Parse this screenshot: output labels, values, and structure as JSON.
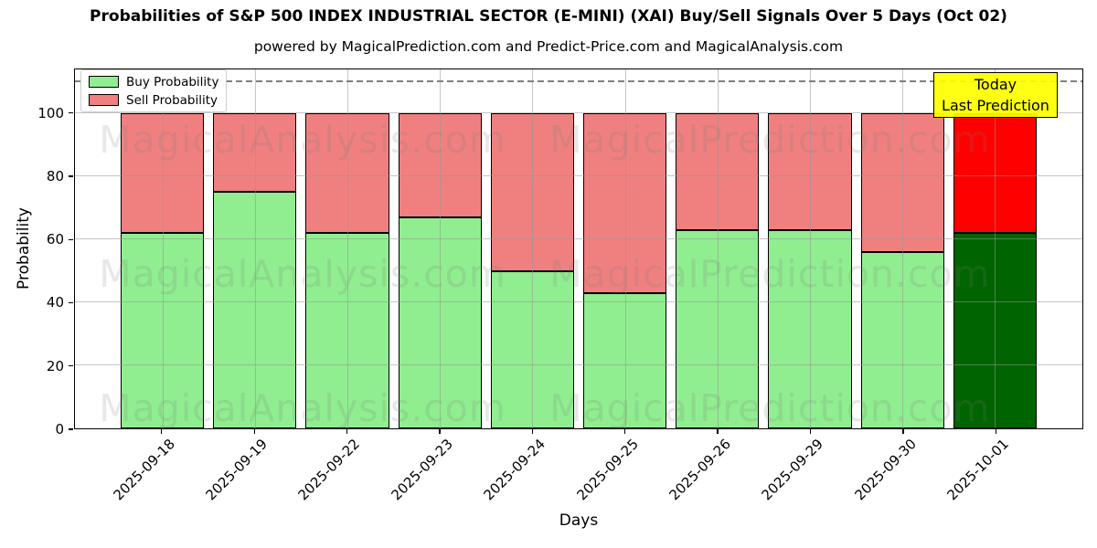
{
  "title": "Probabilities of S&P 500 INDEX INDUSTRIAL SECTOR (E-MINI) (XAI) Buy/Sell Signals Over 5 Days (Oct 02)",
  "subtitle": "powered by MagicalPrediction.com and Predict-Price.com and MagicalAnalysis.com",
  "legend": {
    "items": [
      {
        "label": "Buy Probability",
        "color": "#90ee90"
      },
      {
        "label": "Sell Probability",
        "color": "#f08080"
      }
    ]
  },
  "annotation": {
    "line1": "Today",
    "line2": "Last Prediction",
    "bg_color": "#ffff00"
  },
  "watermarks": {
    "left_text": "MagicalAnalysis.com",
    "right_text": "MagicalPrediction.com"
  },
  "chart_data": {
    "type": "bar",
    "stacked": true,
    "title": "Probabilities of S&P 500 INDEX INDUSTRIAL SECTOR (E-MINI) (XAI) Buy/Sell Signals Over 5 Days (Oct 02)",
    "xlabel": "Days",
    "ylabel": "Probability",
    "categories": [
      "2025-09-18",
      "2025-09-19",
      "2025-09-22",
      "2025-09-23",
      "2025-09-24",
      "2025-09-25",
      "2025-09-26",
      "2025-09-29",
      "2025-09-30",
      "2025-10-01"
    ],
    "series": [
      {
        "name": "Buy Probability",
        "color": "#90ee90",
        "today_color": "#006400",
        "values": [
          62,
          75,
          62,
          67,
          50,
          43,
          63,
          63,
          56,
          62
        ]
      },
      {
        "name": "Sell Probability",
        "color": "#f08080",
        "today_color": "#ff0000",
        "values": [
          38,
          25,
          38,
          33,
          50,
          57,
          37,
          37,
          44,
          38
        ]
      }
    ],
    "today_index": 9,
    "ylim": [
      0,
      114
    ],
    "yticks": [
      0,
      20,
      40,
      60,
      80,
      100
    ],
    "dashed_line_y": 110,
    "grid": true,
    "legend_position": "upper left",
    "bar_edge_color": "#000000"
  }
}
